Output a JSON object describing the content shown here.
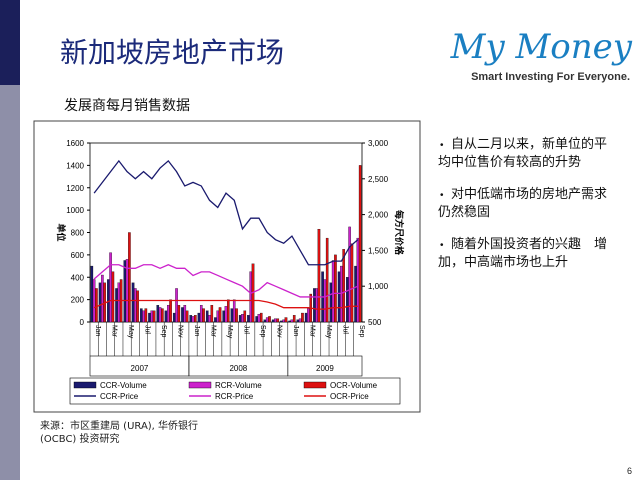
{
  "slide": {
    "title": "新加坡房地产市场",
    "subtitle": "发展商每月销售数据",
    "logo_main": "My Money",
    "logo_tagline": "Smart Investing For Everyone.",
    "bullets": [
      "自从二月以来，新单位的平均中位售价有较高的升势",
      "对中低端市场的房地产需求仍然稳固",
      "随着外国投资者的兴趣　增加，中高端市场也上升"
    ],
    "source": [
      "来源：市区重建局 (URA), 华侨银行",
      "(OCBC) 投资研究"
    ],
    "page": "6"
  },
  "chart_data": {
    "type": "bar-line",
    "y_label": "单位",
    "y2_label": "每方尺价格",
    "categories": [
      "Jan",
      null,
      "Mar",
      null,
      "May",
      null,
      "Jul",
      null,
      "Sep",
      null,
      "Nov",
      null,
      "Jan",
      null,
      "Mar",
      null,
      "May",
      null,
      "Jul",
      null,
      "Sep",
      null,
      "Nov",
      null,
      "Jan",
      null,
      "Mar",
      null,
      "May",
      null,
      "Jul",
      null,
      "Sep"
    ],
    "groups": [
      "2007",
      "2008",
      "2009"
    ],
    "ylim": [
      0,
      1600
    ],
    "yticks": [
      0,
      200,
      400,
      600,
      800,
      1000,
      1200,
      1400,
      1600
    ],
    "y2lim": [
      500,
      3000
    ],
    "y2ticks": [
      500,
      {
        "value": 1000,
        "label": "1,000"
      },
      {
        "value": 1500,
        "label": "1,500"
      },
      {
        "value": 2000,
        "label": "2,000"
      },
      {
        "value": 2500,
        "label": "2,500"
      },
      {
        "value": 3000,
        "label": "3,000"
      }
    ],
    "series": [
      {
        "name": "CCR-Volume",
        "kind": "bar",
        "color": "#1a1a6e",
        "values": [
          500,
          350,
          380,
          300,
          550,
          350,
          120,
          80,
          150,
          100,
          80,
          130,
          60,
          80,
          100,
          40,
          100,
          120,
          60,
          60,
          50,
          20,
          20,
          10,
          10,
          20,
          80,
          300,
          450,
          350,
          450,
          400,
          500
        ]
      },
      {
        "name": "RCR-Volume",
        "kind": "bar",
        "color": "#cc22cc",
        "values": [
          380,
          420,
          620,
          350,
          560,
          300,
          100,
          100,
          130,
          150,
          300,
          150,
          50,
          150,
          60,
          100,
          140,
          200,
          70,
          450,
          70,
          40,
          30,
          20,
          20,
          30,
          120,
          300,
          380,
          550,
          500,
          850,
          750
        ]
      },
      {
        "name": "OCR-Volume",
        "kind": "bar",
        "color": "#dd1111",
        "values": [
          300,
          350,
          450,
          380,
          800,
          280,
          120,
          100,
          120,
          200,
          150,
          100,
          60,
          120,
          150,
          130,
          200,
          120,
          100,
          520,
          80,
          50,
          30,
          40,
          60,
          80,
          250,
          830,
          750,
          600,
          650,
          700,
          1400
        ]
      },
      {
        "name": "CCR-Price",
        "kind": "line",
        "axis": "y2",
        "color": "#1a1a6e",
        "values": [
          2300,
          2450,
          2600,
          2750,
          2600,
          2500,
          2600,
          2500,
          2650,
          2750,
          2600,
          2400,
          2450,
          2400,
          2200,
          2100,
          2300,
          2200,
          1800,
          1950,
          1950,
          1750,
          1650,
          1600,
          1700,
          1500,
          1300,
          1300,
          1300,
          1350,
          1350,
          1550,
          1650
        ]
      },
      {
        "name": "RCR-Price",
        "kind": "line",
        "axis": "y2",
        "color": "#cc22cc",
        "values": [
          1100,
          1200,
          1300,
          1300,
          1250,
          1250,
          1300,
          1300,
          1250,
          1300,
          1250,
          1250,
          1150,
          1200,
          1200,
          1150,
          1100,
          1050,
          1000,
          900,
          950,
          1050,
          1000,
          950,
          900,
          850,
          850,
          850,
          850,
          900,
          900,
          950,
          1000
        ]
      },
      {
        "name": "OCR-Price",
        "kind": "line",
        "axis": "y2",
        "color": "#dd1111",
        "values": [
          700,
          750,
          800,
          800,
          800,
          800,
          800,
          800,
          800,
          800,
          800,
          800,
          800,
          800,
          800,
          800,
          800,
          800,
          800,
          800,
          800,
          780,
          750,
          700,
          700,
          700,
          700,
          680,
          680,
          700,
          700,
          720,
          720
        ]
      }
    ]
  }
}
